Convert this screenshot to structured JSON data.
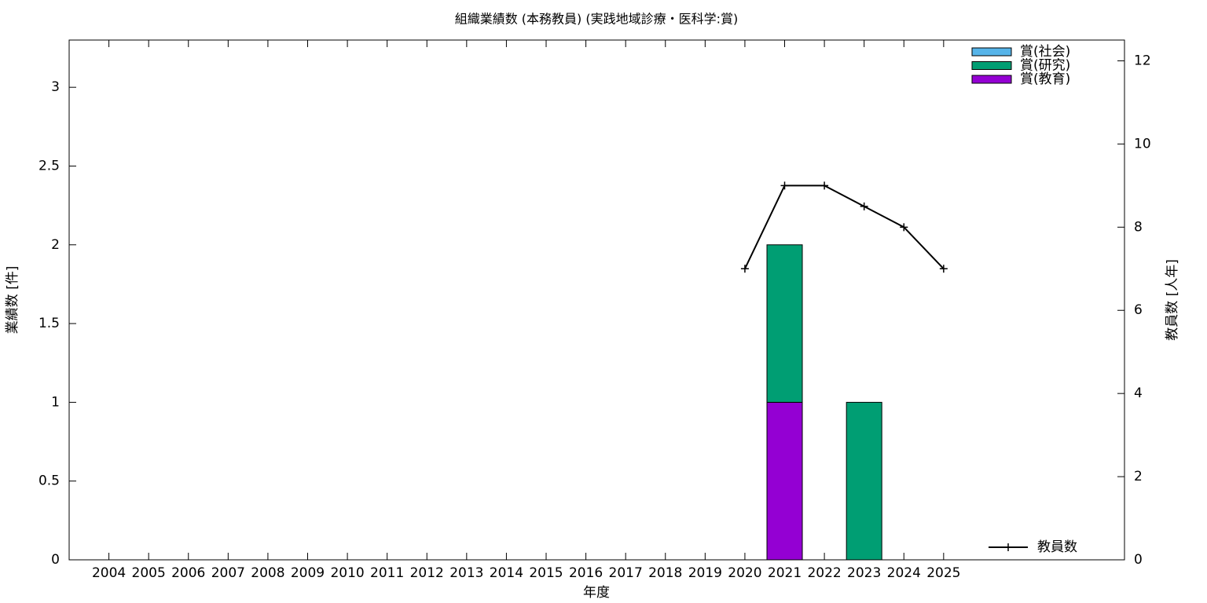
{
  "chart_data": {
    "type": "bar",
    "title": "組織業績数 (本務教員) (実践地域診療・医科学:賞)",
    "x_label": "年度",
    "y_label": "業績数 [件]",
    "y2_label": "教員数 [人年]",
    "categories": [
      "2004",
      "2005",
      "2006",
      "2007",
      "2008",
      "2009",
      "2010",
      "2011",
      "2012",
      "2013",
      "2014",
      "2015",
      "2016",
      "2017",
      "2018",
      "2019",
      "2020",
      "2021",
      "2022",
      "2023",
      "2024",
      "2025"
    ],
    "series": [
      {
        "name": "賞(教育)",
        "color": "#9400d3",
        "values": [
          0,
          0,
          0,
          0,
          0,
          0,
          0,
          0,
          0,
          0,
          0,
          0,
          0,
          0,
          0,
          0,
          0,
          1,
          0,
          0,
          0,
          0
        ]
      },
      {
        "name": "賞(研究)",
        "color": "#009e73",
        "values": [
          0,
          0,
          0,
          0,
          0,
          0,
          0,
          0,
          0,
          0,
          0,
          0,
          0,
          0,
          0,
          0,
          0,
          1,
          0,
          1,
          0,
          0
        ]
      },
      {
        "name": "賞(社会)",
        "color": "#56b4e9",
        "values": [
          0,
          0,
          0,
          0,
          0,
          0,
          0,
          0,
          0,
          0,
          0,
          0,
          0,
          0,
          0,
          0,
          0,
          0,
          0,
          0,
          0,
          0
        ]
      },
      {
        "name": "教員数",
        "color": "#000000",
        "axis": "y2",
        "type": "line",
        "values": [
          null,
          null,
          null,
          null,
          null,
          null,
          null,
          null,
          null,
          null,
          null,
          null,
          null,
          null,
          null,
          null,
          7,
          9,
          9,
          8.5,
          8,
          7
        ]
      }
    ],
    "ylim": [
      0,
      3.3
    ],
    "yticks": [
      0,
      0.5,
      1,
      1.5,
      2,
      2.5,
      3
    ],
    "y2lim": [
      0,
      12.5
    ],
    "y2ticks": [
      0,
      2,
      4,
      6,
      8,
      10,
      12
    ],
    "stacked": true,
    "grid": false
  }
}
